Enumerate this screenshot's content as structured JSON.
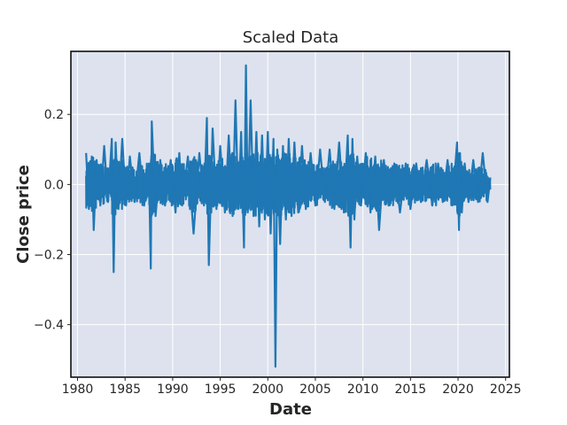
{
  "chart_data": {
    "type": "line",
    "title": "Scaled Data",
    "xlabel": "Date",
    "ylabel": "Close price",
    "xlim": [
      1979.3,
      2025.4
    ],
    "ylim": [
      -0.55,
      0.38
    ],
    "x_ticks": [
      1980,
      1985,
      1990,
      1995,
      2000,
      2005,
      2010,
      2015,
      2020,
      2025
    ],
    "y_ticks": [
      0.2,
      0.0,
      -0.2,
      -0.4
    ],
    "x_tick_labels": [
      "1980",
      "1985",
      "1990",
      "1995",
      "2000",
      "2005",
      "2010",
      "2015",
      "2020",
      "2025"
    ],
    "y_tick_labels": [
      "0.2",
      "0.0",
      "−0.2",
      "−0.4"
    ],
    "grid": true,
    "colors": {
      "series": "#1f77b4",
      "plot_bg": "#dde2ee",
      "grid": "#ffffff",
      "frame": "#000000"
    },
    "series": [
      {
        "x": [
          1980.9,
          1981.2,
          1981.5,
          1981.7,
          1982.0,
          1982.4,
          1982.8,
          1983.2,
          1983.6,
          1983.8,
          1984.0,
          1984.3,
          1984.7,
          1985.1,
          1985.5,
          1986.0,
          1986.5,
          1987.0,
          1987.5,
          1987.7,
          1987.8,
          1988.2,
          1988.7,
          1989.2,
          1989.8,
          1990.3,
          1990.7,
          1991.0,
          1991.6,
          1992.2,
          1992.8,
          1993.3,
          1993.6,
          1993.8,
          1994.2,
          1994.6,
          1995.0,
          1995.5,
          1995.9,
          1996.3,
          1996.6,
          1996.9,
          1997.2,
          1997.5,
          1997.7,
          1997.9,
          1998.2,
          1998.5,
          1998.8,
          1999.1,
          1999.4,
          1999.7,
          2000.0,
          2000.3,
          2000.6,
          2000.8,
          2001.0,
          2001.3,
          2001.6,
          2001.9,
          2002.2,
          2002.5,
          2002.8,
          2003.2,
          2003.6,
          2004.0,
          2004.5,
          2005.0,
          2005.5,
          2006.0,
          2006.5,
          2007.0,
          2007.5,
          2008.0,
          2008.4,
          2008.7,
          2008.9,
          2009.1,
          2009.4,
          2009.8,
          2010.3,
          2010.8,
          2011.3,
          2011.7,
          2012.2,
          2012.7,
          2013.3,
          2013.9,
          2014.5,
          2015.0,
          2015.6,
          2016.1,
          2016.7,
          2017.3,
          2017.9,
          2018.4,
          2018.9,
          2019.4,
          2019.9,
          2020.1,
          2020.2,
          2020.4,
          2020.7,
          2021.1,
          2021.6,
          2022.1,
          2022.6,
          2023.1,
          2023.4
        ],
        "y": [
          0.09,
          -0.07,
          0.08,
          -0.13,
          0.07,
          -0.06,
          0.11,
          -0.05,
          0.13,
          -0.25,
          0.12,
          -0.07,
          0.13,
          -0.06,
          0.08,
          -0.05,
          0.09,
          -0.06,
          0.06,
          -0.24,
          0.18,
          -0.09,
          0.07,
          -0.06,
          0.07,
          -0.08,
          0.09,
          -0.06,
          0.08,
          -0.14,
          0.09,
          -0.06,
          0.19,
          -0.23,
          0.16,
          -0.07,
          0.11,
          -0.08,
          0.14,
          -0.09,
          0.24,
          -0.07,
          0.15,
          -0.18,
          0.34,
          -0.08,
          0.24,
          -0.09,
          0.15,
          -0.12,
          0.14,
          -0.1,
          0.15,
          -0.14,
          0.13,
          -0.52,
          0.1,
          -0.17,
          0.11,
          -0.1,
          0.13,
          -0.09,
          0.12,
          -0.08,
          0.11,
          -0.07,
          0.09,
          -0.06,
          0.1,
          -0.05,
          0.1,
          -0.07,
          0.12,
          -0.08,
          0.14,
          -0.18,
          0.13,
          -0.1,
          0.08,
          -0.06,
          0.09,
          -0.08,
          0.08,
          -0.13,
          0.07,
          -0.06,
          0.06,
          -0.08,
          0.06,
          -0.07,
          0.06,
          -0.05,
          0.07,
          -0.06,
          0.06,
          -0.05,
          0.07,
          -0.06,
          0.12,
          -0.13,
          0.09,
          -0.08,
          0.06,
          -0.05,
          0.07,
          -0.05,
          0.09,
          -0.05,
          0.02
        ]
      }
    ]
  }
}
